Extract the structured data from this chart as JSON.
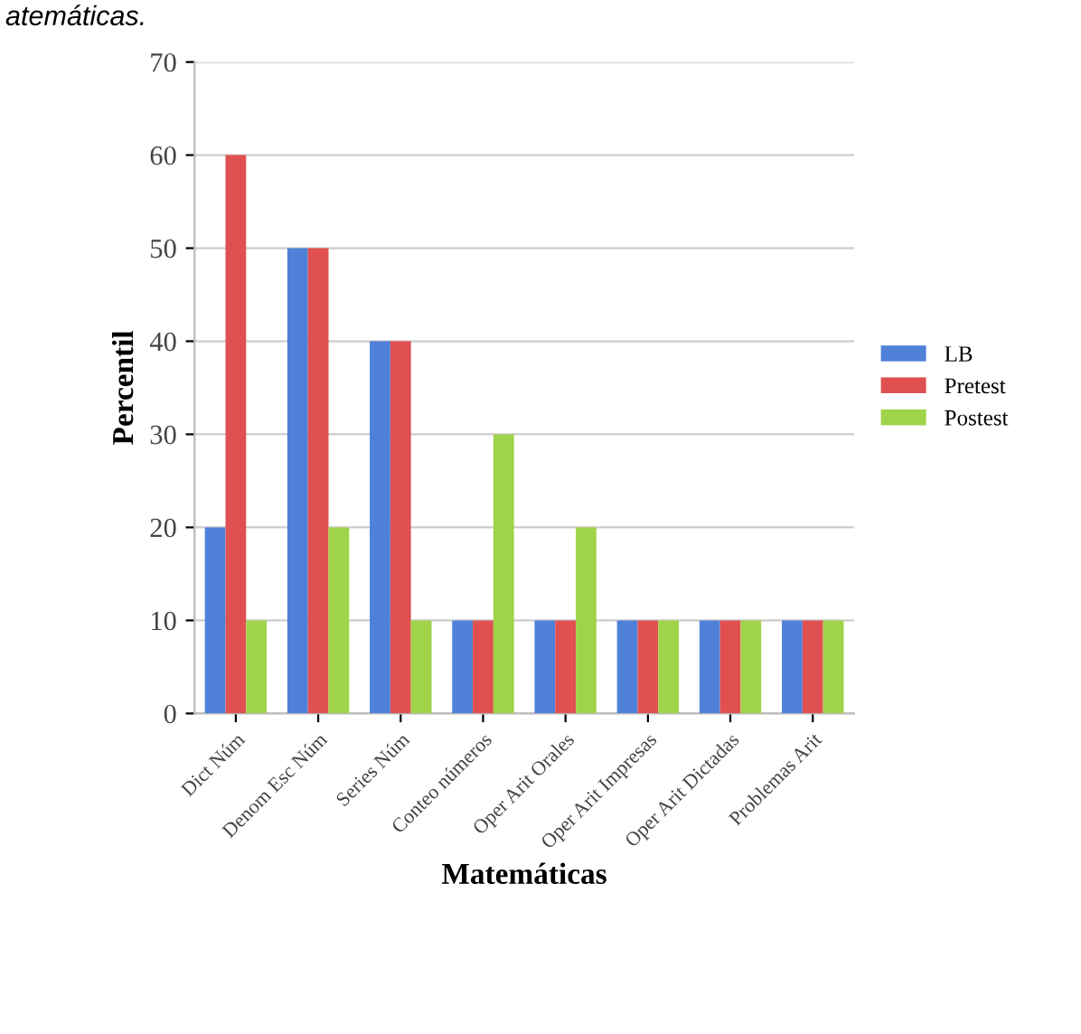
{
  "chart_data": {
    "type": "bar",
    "categories": [
      "Dict Núm",
      "Denom Esc Núm",
      "Series Núm",
      "Conteo números",
      "Oper Arit Orales",
      "Oper Arit Impresas",
      "Oper Arit Dictadas",
      "Problemas Arit"
    ],
    "series": [
      {
        "name": "LB",
        "color": "#4f81d9",
        "values": [
          20,
          50,
          40,
          10,
          10,
          10,
          10,
          10
        ]
      },
      {
        "name": "Pretest",
        "color": "#e05050",
        "values": [
          60,
          50,
          40,
          10,
          10,
          10,
          10,
          10
        ]
      },
      {
        "name": "Postest",
        "color": "#9fd34a",
        "values": [
          10,
          20,
          10,
          30,
          20,
          10,
          10,
          10
        ]
      }
    ],
    "xlabel": "Matemáticas",
    "ylabel": "Percentil",
    "ylim": [
      0,
      70
    ],
    "yticks": [
      0,
      10,
      20,
      30,
      40,
      50,
      60,
      70
    ],
    "grid": "y",
    "legend": "right",
    "annotations": [
      "atemáticas."
    ]
  }
}
